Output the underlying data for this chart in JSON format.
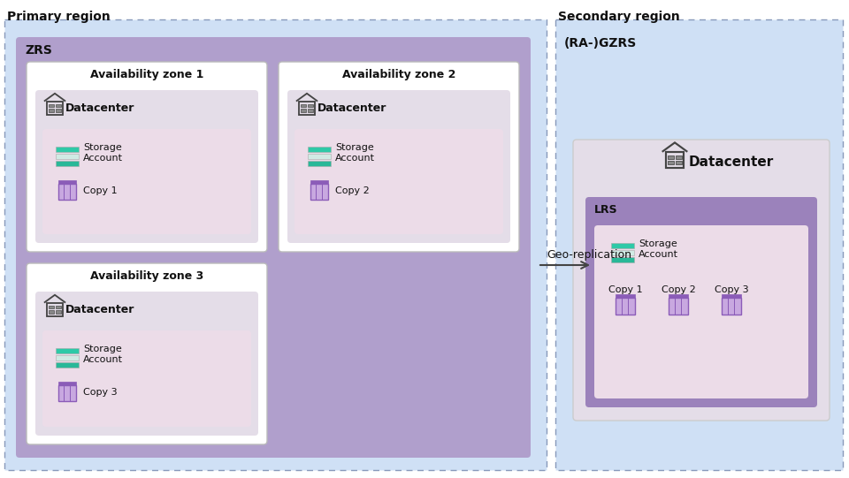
{
  "primary_region_label": "Primary region",
  "secondary_region_label": "Secondary region",
  "zrs_label": "ZRS",
  "ra_gzrs_label": "(RA-)GZRS",
  "lrs_label": "LRS",
  "geo_replication_label": "Geo-replication",
  "datacenter_label": "Datacenter",
  "av_zone_labels": [
    "Availability zone 1",
    "Availability zone 2",
    "Availability zone 3"
  ],
  "copy_labels_primary": [
    "Copy 1",
    "Copy 2",
    "Copy 3"
  ],
  "copy_labels_secondary": [
    "Copy 1",
    "Copy 2",
    "Copy 3"
  ],
  "bg_color": "#ffffff",
  "primary_region_bg": "#cfe0f5",
  "secondary_region_bg": "#cfe0f5",
  "zrs_box_bg": "#b09fcc",
  "av_zone_bg": "#ffffff",
  "datacenter_box_bg": "#e4dde8",
  "storage_inner_box_bg": "#ecdce8",
  "lrs_box_bg": "#9b82bb",
  "lrs_inner_box_bg": "#ecdce8",
  "secondary_datacenter_bg": "#e4dde8",
  "teal1": "#2ec9a7",
  "teal2": "#29b898",
  "teal3": "#d0eae4",
  "purple_icon": "#8b5cb8",
  "purple_icon_light": "#c8a8e0",
  "arrow_color": "#444444",
  "text_color": "#111111",
  "dashed_border_color": "#8899bb"
}
